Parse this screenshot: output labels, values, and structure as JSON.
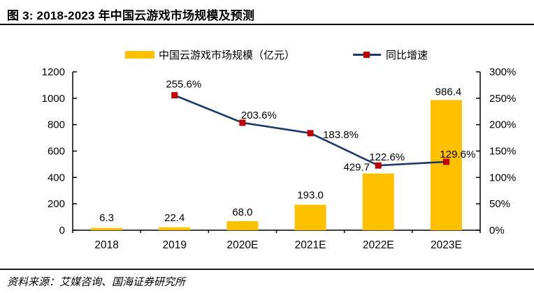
{
  "header": {
    "title": "图 3: 2018-2023 年中国云游戏市场规模及预测"
  },
  "legend": {
    "bar_label": "中国云游戏市场规模（亿元）",
    "line_label": "同比增速"
  },
  "footer": {
    "source": "资料来源：艾媒咨询、国海证券研究所"
  },
  "colors": {
    "bar": "#FFC000",
    "line": "#1B3A6B",
    "marker": "#C00000",
    "axis": "#000000",
    "text": "#000000"
  },
  "chart_data": {
    "type": "bar+line",
    "title": "2018-2023 年中国云游戏市场规模及预测",
    "categories": [
      "2018",
      "2019",
      "2020E",
      "2021E",
      "2022E",
      "2023E"
    ],
    "series": [
      {
        "name": "中国云游戏市场规模（亿元）",
        "type": "bar",
        "axis": "left",
        "color": "#FFC000",
        "values": [
          6.3,
          22.4,
          68.0,
          193.0,
          429.7,
          986.4
        ],
        "labels": [
          "6.3",
          "22.4",
          "68.0",
          "193.0",
          "429.7",
          "986.4"
        ],
        "label_offsets": [
          {
            "dx": 0,
            "dy": -12
          },
          {
            "dx": 0,
            "dy": -9
          },
          {
            "dx": 0,
            "dy": -8
          },
          {
            "dx": 0,
            "dy": -9
          },
          {
            "dx": -31,
            "dy": -4
          },
          {
            "dx": 3,
            "dy": -7
          }
        ]
      },
      {
        "name": "同比增速",
        "type": "line",
        "axis": "right",
        "color": "#1B3A6B",
        "marker_color": "#C00000",
        "values": [
          null,
          255.6,
          203.6,
          183.8,
          122.6,
          129.6
        ],
        "labels": [
          null,
          "255.6%",
          "203.6%",
          "183.8%",
          "122.6%",
          "129.6%"
        ],
        "label_offsets": [
          null,
          {
            "dx": 13,
            "dy": -11,
            "anchor": "middle"
          },
          {
            "dx": -2,
            "dy": -6,
            "anchor": "start"
          },
          {
            "dx": 18,
            "dy": 7,
            "anchor": "start"
          },
          {
            "dx": -13,
            "dy": -7,
            "anchor": "start"
          },
          {
            "dx": -9,
            "dy": -6,
            "anchor": "start"
          }
        ]
      }
    ],
    "left_axis": {
      "min": 0,
      "max": 1200,
      "step": 200,
      "tick_labels": [
        "0",
        "200",
        "400",
        "600",
        "800",
        "1000",
        "1200"
      ]
    },
    "right_axis": {
      "min": 0,
      "max": 300,
      "step": 50,
      "tick_labels": [
        "0%",
        "50%",
        "100%",
        "150%",
        "200%",
        "250%",
        "300%"
      ]
    },
    "grid": false,
    "legend_position": "top"
  }
}
